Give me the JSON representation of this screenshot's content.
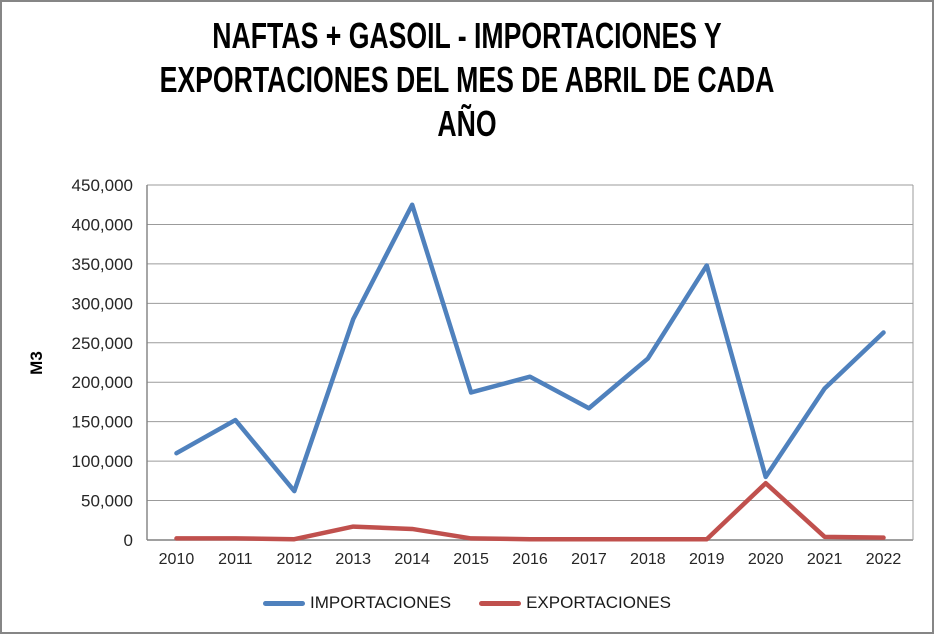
{
  "header": {
    "line1": "NAFTAS + GASOIL - IMPORTACIONES Y",
    "line2": "EXPORTACIONES DEL MES DE ABRIL DE CADA",
    "line3": "AÑO"
  },
  "chart_data": {
    "type": "line",
    "title": "NAFTAS + GASOIL - IMPORTACIONES Y EXPORTACIONES DEL MES DE ABRIL DE CADA AÑO",
    "xlabel": "",
    "ylabel": "M3",
    "categories": [
      "2010",
      "2011",
      "2012",
      "2013",
      "2014",
      "2015",
      "2016",
      "2017",
      "2018",
      "2019",
      "2020",
      "2021",
      "2022"
    ],
    "series": [
      {
        "name": "IMPORTACIONES",
        "color": "#4F81BD",
        "values": [
          110000,
          152000,
          62000,
          280000,
          425000,
          187000,
          207000,
          167000,
          230000,
          348000,
          80000,
          192000,
          263000
        ]
      },
      {
        "name": "EXPORTACIONES",
        "color": "#C0504D",
        "values": [
          2000,
          2000,
          1000,
          17000,
          14000,
          2000,
          1000,
          1000,
          1000,
          1000,
          72000,
          4000,
          3000
        ]
      }
    ],
    "ylim": [
      0,
      450000
    ],
    "ytick_step": 50000,
    "ytick_format": "thousands-comma",
    "grid": "horizontal",
    "legend_position": "bottom",
    "colors": {
      "grid": "#9B9B9B",
      "axis": "#808080",
      "tick_text": "#262626",
      "title_text": "#000000",
      "frame_border": "#868686"
    }
  }
}
